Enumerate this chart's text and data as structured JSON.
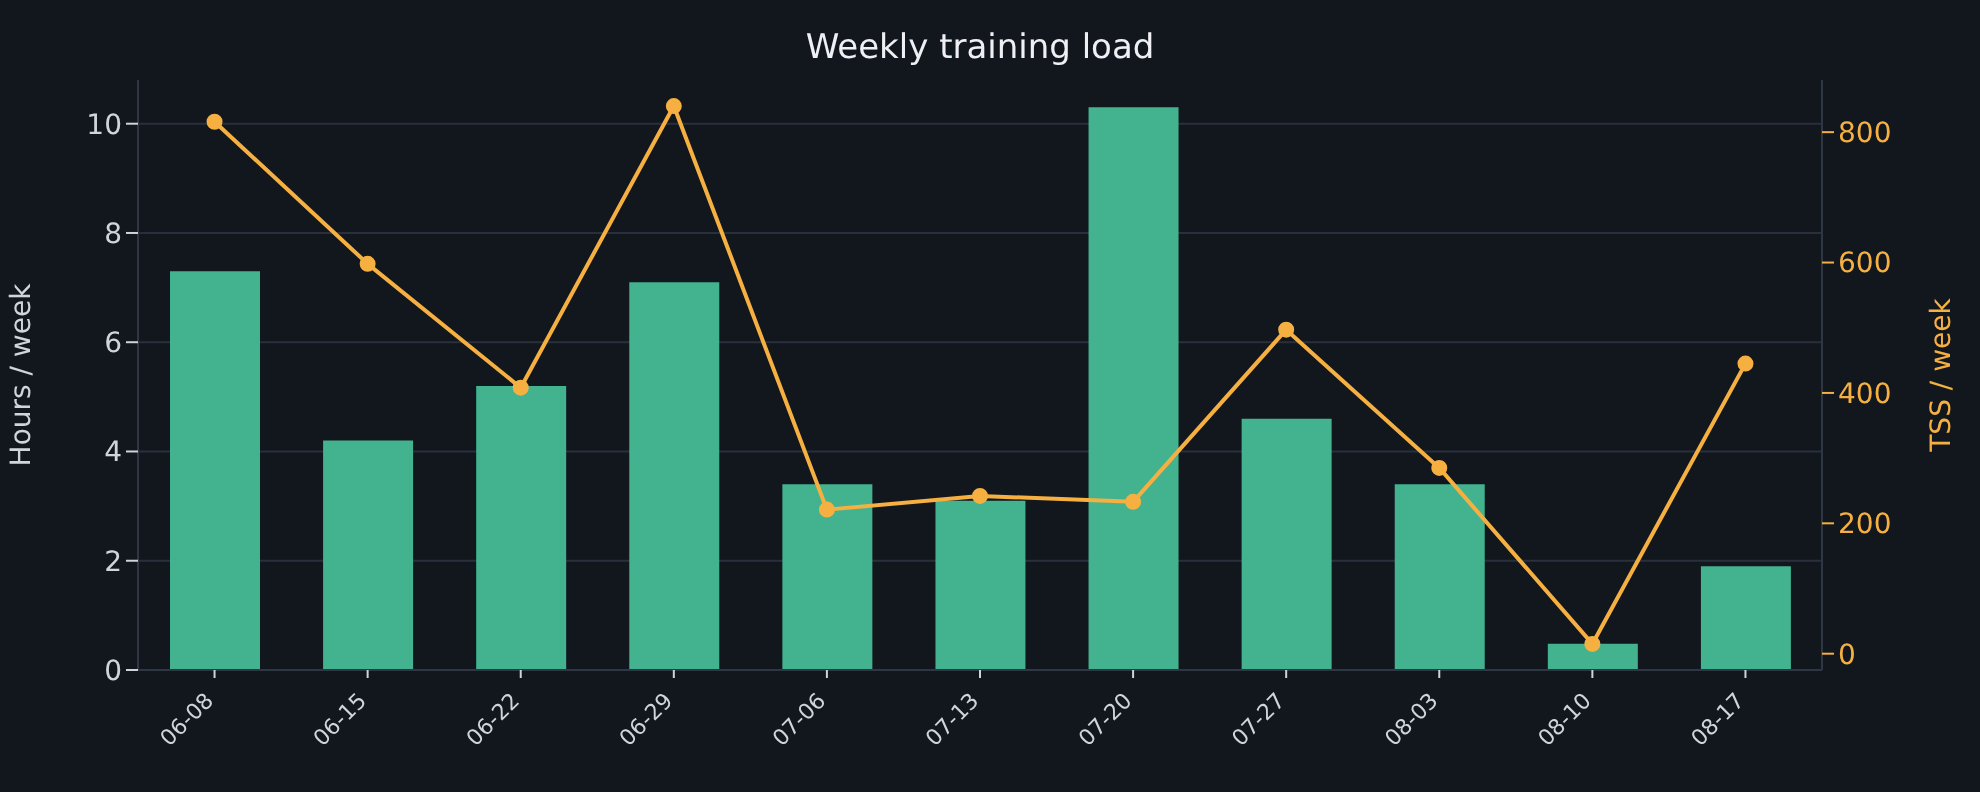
{
  "chart_data": {
    "type": "bar",
    "title": "Weekly training load",
    "ylabel": "Hours / week",
    "y2label": "TSS / week",
    "categories": [
      "06-08",
      "06-15",
      "06-22",
      "06-29",
      "07-06",
      "07-13",
      "07-20",
      "07-27",
      "08-03",
      "08-10",
      "08-17"
    ],
    "series": [
      {
        "color": "#43b38f",
        "values": [
          7.3,
          4.2,
          5.2,
          7.1,
          3.4,
          3.1,
          10.3,
          4.6,
          3.4,
          0.48,
          1.9
        ]
      },
      {
        "type": "line",
        "axis": "y2",
        "color": "#f5b041",
        "values": [
          816,
          598,
          408,
          840,
          221,
          242,
          233,
          497,
          285,
          15,
          445
        ]
      }
    ],
    "ylim": [
      0,
      10.8
    ],
    "yticks": [
      0,
      2,
      4,
      6,
      8,
      10
    ],
    "y2lim": [
      -25,
      880
    ],
    "y2ticks": [
      0,
      200,
      400,
      600,
      800
    ],
    "grid": "y",
    "legend": false,
    "marker": "circle",
    "line_style": "solid"
  }
}
